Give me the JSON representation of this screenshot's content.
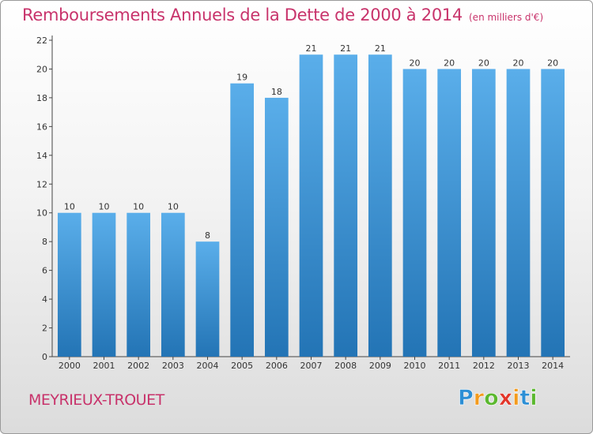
{
  "title": "Remboursements Annuels de la Dette de 2000 à 2014",
  "unit_note": "(en milliers d'€)",
  "city": "MEYRIEUX-TROUET",
  "logo": {
    "letters": [
      "P",
      "r",
      "o",
      "x",
      "i",
      "t",
      "i"
    ],
    "colors": [
      "#2d8fd5",
      "#f39b1e",
      "#5bb82f",
      "#e2362a",
      "#f39b1e",
      "#2d8fd5",
      "#5bb82f"
    ]
  },
  "colors": {
    "bar_light": "#5aaeea",
    "bar_dark": "#2374b5",
    "title": "#c8336b"
  },
  "chart_data": {
    "type": "bar",
    "title": "Remboursements Annuels de la Dette de 2000 à 2014",
    "subtitle": "(en milliers d'€)",
    "categories": [
      "2000",
      "2001",
      "2002",
      "2003",
      "2004",
      "2005",
      "2006",
      "2007",
      "2008",
      "2009",
      "2010",
      "2011",
      "2012",
      "2013",
      "2014"
    ],
    "values": [
      10,
      10,
      10,
      10,
      8,
      19,
      18,
      21,
      21,
      21,
      20,
      20,
      20,
      20,
      20
    ],
    "data_labels": [
      "10",
      "10",
      "10",
      "10",
      "8",
      "19",
      "18",
      "21",
      "21",
      "21",
      "20",
      "20",
      "20",
      "20",
      "20"
    ],
    "y_ticks": [
      0,
      2,
      4,
      6,
      8,
      10,
      12,
      14,
      16,
      18,
      20,
      22
    ],
    "ylim": [
      0,
      22
    ],
    "xlabel": "",
    "ylabel": "",
    "grid": false,
    "legend": "none"
  }
}
